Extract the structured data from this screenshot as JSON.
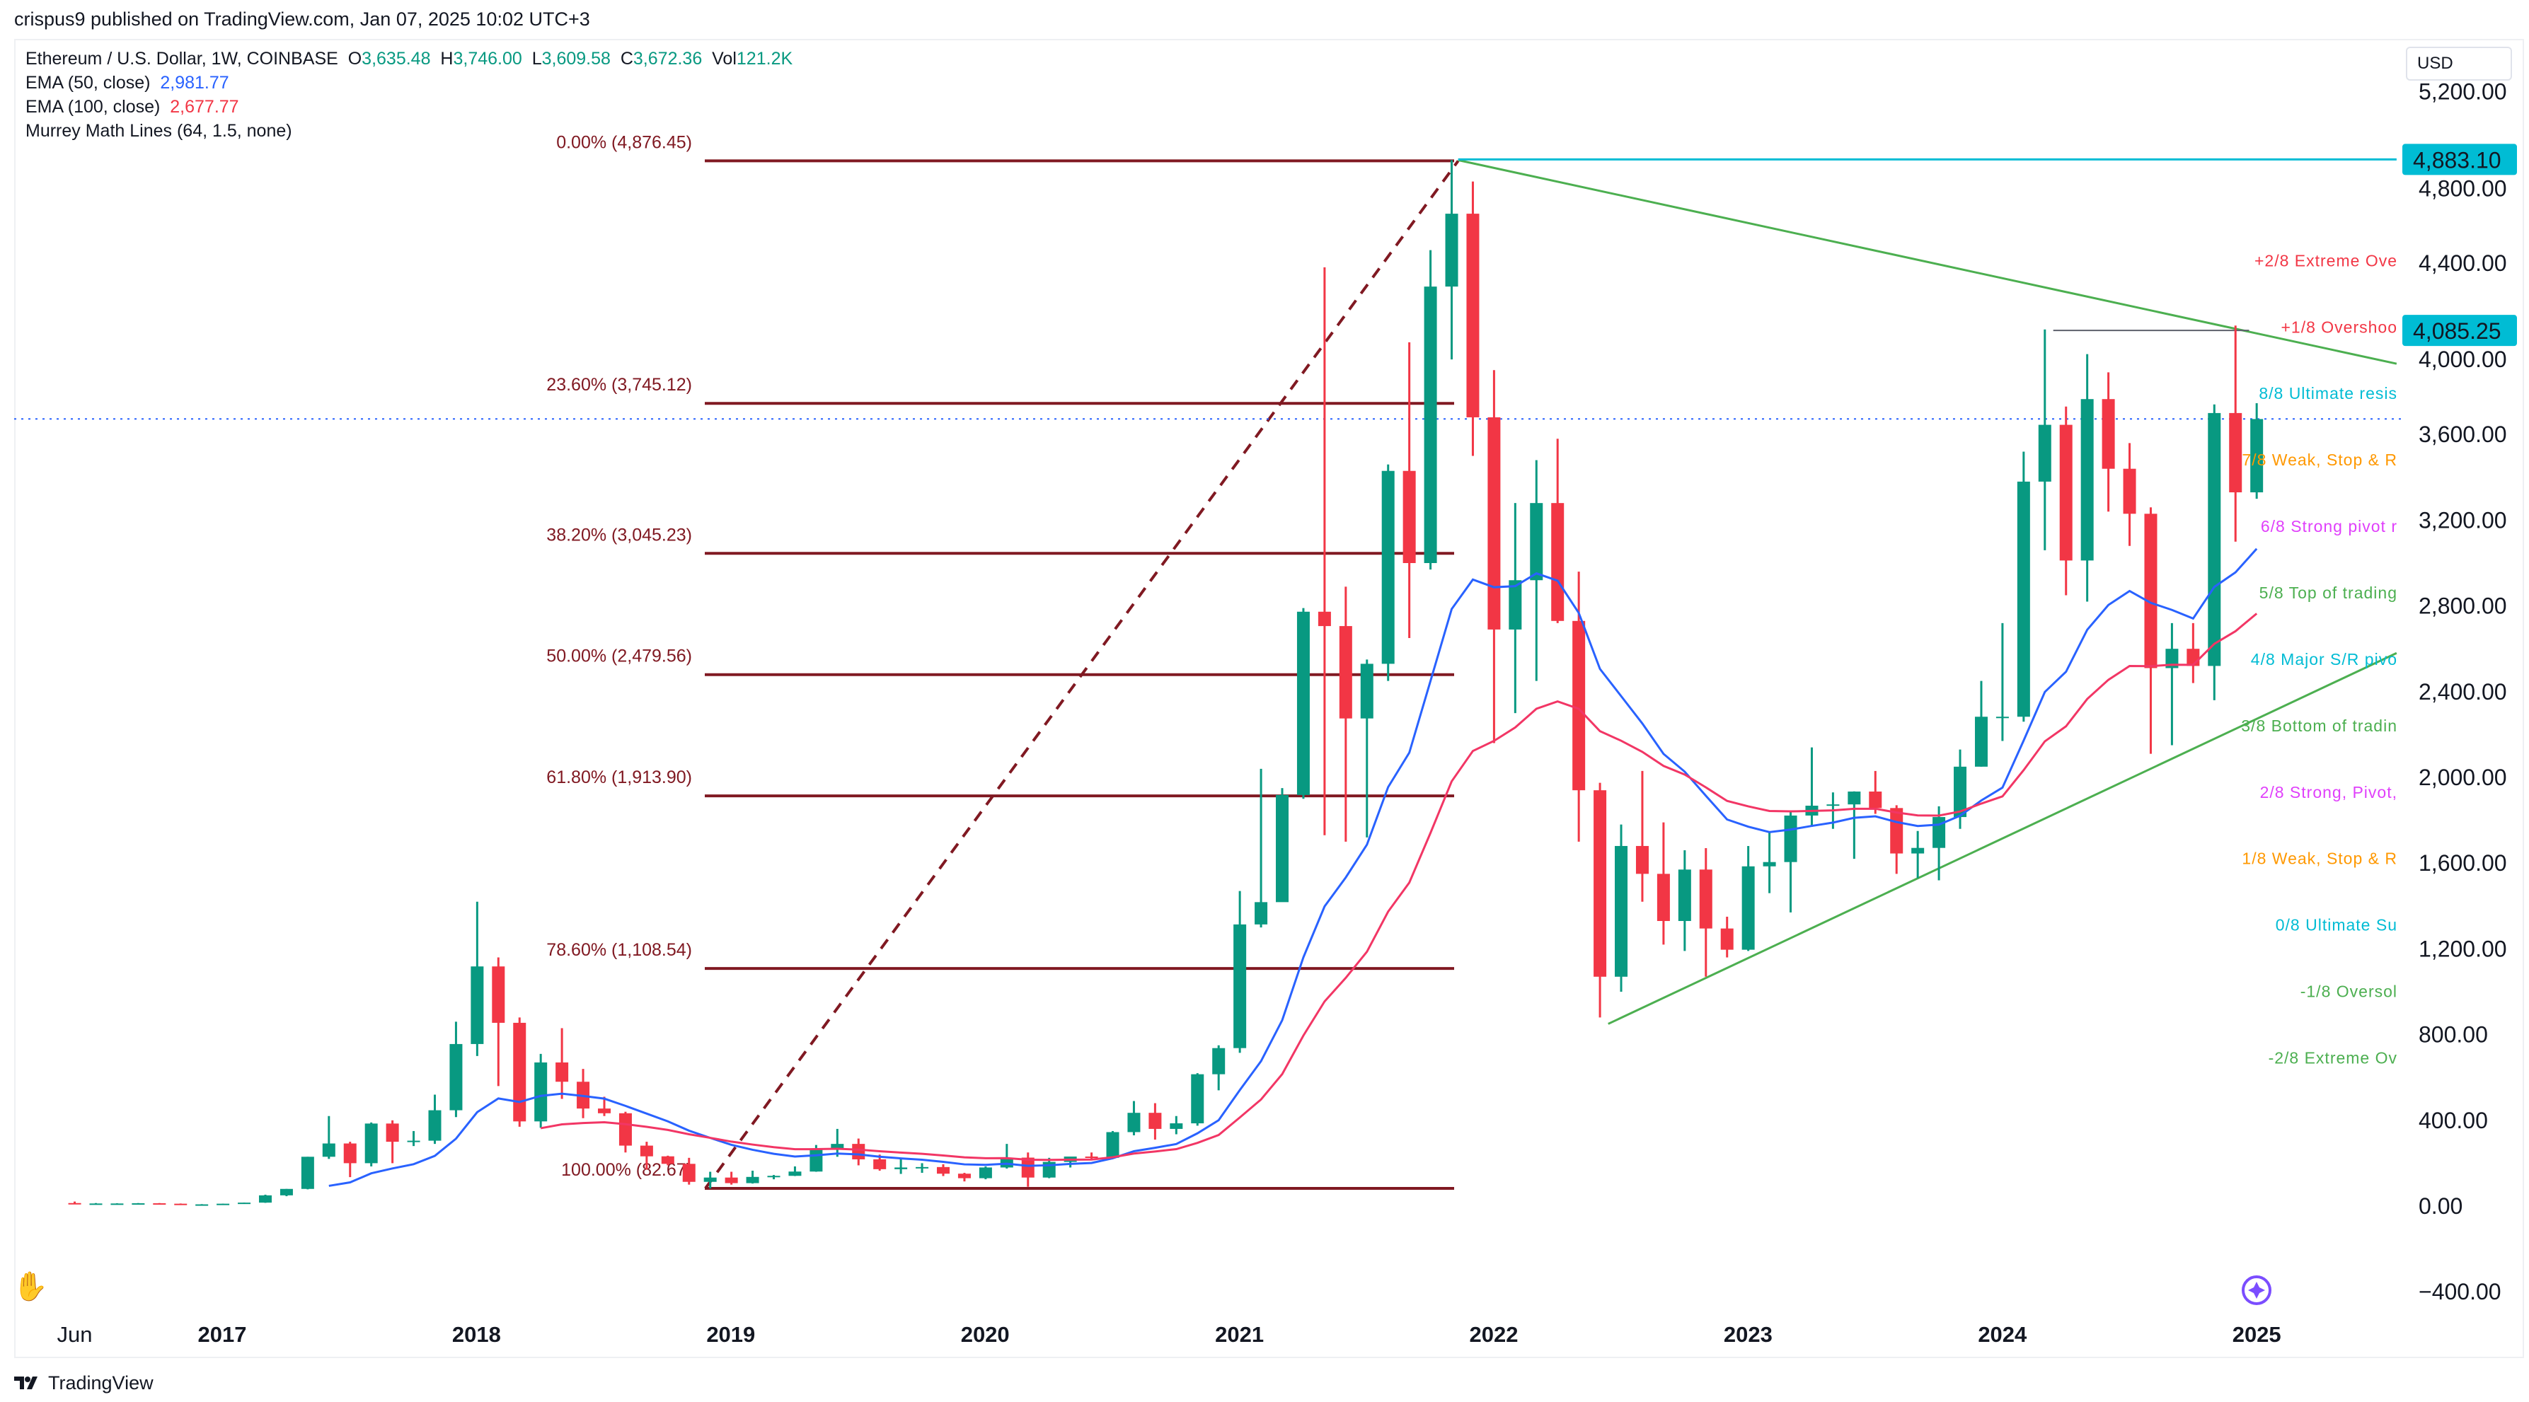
{
  "header": {
    "published": "crispus9 published on TradingView.com, Jan 07, 2025 10:02 UTC+3"
  },
  "legend": {
    "symbol": "Ethereum / U.S. Dollar, 1W, COINBASE",
    "o_label": "O",
    "o": "3,635.48",
    "h_label": "H",
    "h": "3,746.00",
    "l_label": "L",
    "l": "3,609.58",
    "c_label": "C",
    "c": "3,672.36",
    "vol_label": "Vol",
    "vol": "121.2K",
    "ema50_label": "EMA (50, close)",
    "ema50": "2,981.77",
    "ema100_label": "EMA (100, close)",
    "ema100": "2,677.77",
    "murrey_label": "Murrey Math Lines (64, 1.5, none)"
  },
  "currency": "USD",
  "footer": {
    "brand": "TradingView"
  },
  "colors": {
    "up": "#089981",
    "down": "#f23645",
    "ema50": "#2962ff",
    "ema100": "#f23665",
    "fib": "#801922",
    "trend": "#4caf50",
    "price_label": "#00bcd4"
  },
  "icons": {
    "ruler": "ruler-hand-icon",
    "star": "sparkle-icon",
    "logo": "tradingview-logo-icon"
  },
  "chart_data": {
    "type": "candlestick",
    "interval": "1W (shown as monthly approximation)",
    "y_ticks": [
      "5,200.00",
      "4,800.00",
      "4,400.00",
      "4,000.00",
      "3,600.00",
      "3,200.00",
      "2,800.00",
      "2,400.00",
      "2,000.00",
      "1,600.00",
      "1,200.00",
      "800.00",
      "400.00",
      "0.00",
      "−400.00"
    ],
    "y_tick_values": [
      5200,
      4800,
      4400,
      4000,
      3600,
      3200,
      2800,
      2400,
      2000,
      1600,
      1200,
      800,
      400,
      0,
      -400
    ],
    "x_ticks": [
      {
        "label": "Jun",
        "t": 2016.42
      },
      {
        "label": "2017",
        "t": 2017
      },
      {
        "label": "2018",
        "t": 2018
      },
      {
        "label": "2019",
        "t": 2019
      },
      {
        "label": "2020",
        "t": 2020
      },
      {
        "label": "2021",
        "t": 2021
      },
      {
        "label": "2022",
        "t": 2022
      },
      {
        "label": "2023",
        "t": 2023
      },
      {
        "label": "2024",
        "t": 2024
      },
      {
        "label": "2025",
        "t": 2025
      }
    ],
    "ylim": [
      -550,
      5450
    ],
    "xlim": [
      2016.15,
      2025.55
    ],
    "price_labels": [
      {
        "text": "4,883.10",
        "value": 4883.1
      },
      {
        "text": "4,085.25",
        "value": 4085.25
      }
    ],
    "current_price": 3672.36,
    "fib_levels": [
      {
        "label": "0.00% (4,876.45)",
        "value": 4876.45
      },
      {
        "label": "23.60% (3,745.12)",
        "value": 3745.12
      },
      {
        "label": "38.20% (3,045.23)",
        "value": 3045.23
      },
      {
        "label": "50.00% (2,479.56)",
        "value": 2479.56
      },
      {
        "label": "61.80% (1,913.90)",
        "value": 1913.9
      },
      {
        "label": "78.60% (1,108.54)",
        "value": 1108.54
      },
      {
        "label": "100.00% (82.67)",
        "value": 82.67
      }
    ],
    "fib_range": [
      2018.9,
      2021.86
    ],
    "murrey_levels": [
      {
        "label": "+2/8 Extreme Ove",
        "value": 4385,
        "color": "#f23645"
      },
      {
        "label": "+1/8 Overshoo",
        "value": 4075,
        "color": "#f23645"
      },
      {
        "label": "8/8 Ultimate resis",
        "value": 3765,
        "color": "#00bcd4"
      },
      {
        "label": "7/8 Weak, Stop & R",
        "value": 3455,
        "color": "#ff9800"
      },
      {
        "label": "6/8 Strong pivot r",
        "value": 3145,
        "color": "#e040fb"
      },
      {
        "label": "5/8 Top of trading",
        "value": 2835,
        "color": "#4caf50"
      },
      {
        "label": "4/8 Major S/R pivo",
        "value": 2525,
        "color": "#00bcd4"
      },
      {
        "label": "3/8 Bottom of tradin",
        "value": 2215,
        "color": "#4caf50"
      },
      {
        "label": "2/8 Strong, Pivot,",
        "value": 1905,
        "color": "#e040fb"
      },
      {
        "label": "1/8 Weak, Stop & R",
        "value": 1595,
        "color": "#ff9800"
      },
      {
        "label": "0/8 Ultimate Su",
        "value": 1285,
        "color": "#00bcd4"
      },
      {
        "label": "-1/8 Oversol",
        "value": 975,
        "color": "#4caf50"
      },
      {
        "label": "-2/8 Extreme Ov",
        "value": 665,
        "color": "#4caf50"
      }
    ],
    "trendlines": [
      {
        "name": "descending",
        "from": [
          2021.86,
          4880
        ],
        "to": [
          2025.55,
          3930
        ]
      },
      {
        "name": "ascending",
        "from": [
          2022.45,
          850
        ],
        "to": [
          2025.55,
          2580
        ]
      },
      {
        "name": "resistance-4085",
        "from": [
          2024.2,
          4085.25
        ],
        "to": [
          2024.97,
          4085.25
        ]
      },
      {
        "name": "ath-4883",
        "from": [
          2021.86,
          4883.1
        ],
        "to": [
          2025.55,
          4883.1
        ]
      }
    ],
    "ohlc_start": 2016.42,
    "ohlc_step": 0.0833,
    "ohlc": [
      [
        14,
        21,
        11,
        12
      ],
      [
        12,
        14,
        10,
        12
      ],
      [
        12,
        13,
        10,
        12
      ],
      [
        12,
        14,
        11,
        13
      ],
      [
        13,
        14,
        10,
        11
      ],
      [
        11,
        12,
        8,
        8
      ],
      [
        8,
        9,
        6,
        8
      ],
      [
        8,
        11,
        8,
        11
      ],
      [
        11,
        16,
        10,
        16
      ],
      [
        16,
        53,
        15,
        50
      ],
      [
        50,
        80,
        46,
        80
      ],
      [
        80,
        230,
        78,
        230
      ],
      [
        230,
        420,
        220,
        292
      ],
      [
        292,
        300,
        135,
        200
      ],
      [
        200,
        390,
        185,
        385
      ],
      [
        385,
        400,
        200,
        300
      ],
      [
        300,
        350,
        280,
        305
      ],
      [
        305,
        520,
        290,
        447
      ],
      [
        447,
        860,
        415,
        756
      ],
      [
        756,
        1420,
        700,
        1118
      ],
      [
        1118,
        1160,
        560,
        855
      ],
      [
        855,
        880,
        370,
        395
      ],
      [
        395,
        710,
        365,
        670
      ],
      [
        670,
        830,
        500,
        580
      ],
      [
        580,
        640,
        410,
        455
      ],
      [
        455,
        510,
        420,
        433
      ],
      [
        433,
        440,
        250,
        282
      ],
      [
        282,
        300,
        170,
        232
      ],
      [
        232,
        235,
        190,
        197
      ],
      [
        197,
        225,
        100,
        113
      ],
      [
        113,
        160,
        82,
        133
      ],
      [
        133,
        160,
        100,
        107
      ],
      [
        107,
        165,
        105,
        136
      ],
      [
        136,
        145,
        125,
        141
      ],
      [
        141,
        185,
        140,
        161
      ],
      [
        161,
        285,
        160,
        268
      ],
      [
        268,
        360,
        230,
        290
      ],
      [
        290,
        315,
        190,
        218
      ],
      [
        218,
        240,
        165,
        172
      ],
      [
        172,
        225,
        150,
        180
      ],
      [
        180,
        200,
        155,
        182
      ],
      [
        182,
        195,
        140,
        151
      ],
      [
        151,
        155,
        115,
        130
      ],
      [
        130,
        185,
        125,
        180
      ],
      [
        180,
        290,
        175,
        226
      ],
      [
        226,
        250,
        90,
        133
      ],
      [
        133,
        225,
        130,
        206
      ],
      [
        206,
        230,
        180,
        231
      ],
      [
        231,
        250,
        215,
        225
      ],
      [
        225,
        350,
        225,
        345
      ],
      [
        345,
        490,
        330,
        435
      ],
      [
        435,
        480,
        310,
        360
      ],
      [
        360,
        420,
        335,
        386
      ],
      [
        386,
        620,
        375,
        615
      ],
      [
        615,
        750,
        540,
        737
      ],
      [
        737,
        1470,
        715,
        1314
      ],
      [
        1314,
        2040,
        1300,
        1418
      ],
      [
        1418,
        1950,
        1450,
        1918
      ],
      [
        1918,
        2790,
        1900,
        2773
      ],
      [
        2773,
        4380,
        1730,
        2706
      ],
      [
        2706,
        2890,
        1700,
        2275
      ],
      [
        2275,
        2550,
        1720,
        2530
      ],
      [
        2530,
        3460,
        2450,
        3430
      ],
      [
        3430,
        4030,
        2650,
        3000
      ],
      [
        3000,
        4460,
        2970,
        4290
      ],
      [
        4290,
        4880,
        3950,
        4630
      ],
      [
        4630,
        4780,
        3500,
        3680
      ],
      [
        3680,
        3900,
        2160,
        2690
      ],
      [
        2690,
        3280,
        2300,
        2920
      ],
      [
        2920,
        3480,
        2450,
        3280
      ],
      [
        3280,
        3580,
        2720,
        2730
      ],
      [
        2730,
        2960,
        1700,
        1940
      ],
      [
        1940,
        1975,
        880,
        1070
      ],
      [
        1070,
        1780,
        1000,
        1680
      ],
      [
        1680,
        2030,
        1420,
        1550
      ],
      [
        1550,
        1790,
        1220,
        1330
      ],
      [
        1330,
        1660,
        1190,
        1570
      ],
      [
        1570,
        1670,
        1070,
        1295
      ],
      [
        1295,
        1350,
        1160,
        1196
      ],
      [
        1196,
        1680,
        1190,
        1585
      ],
      [
        1585,
        1745,
        1460,
        1605
      ],
      [
        1605,
        1840,
        1370,
        1822
      ],
      [
        1822,
        2140,
        1770,
        1868
      ],
      [
        1868,
        1930,
        1760,
        1874
      ],
      [
        1874,
        1935,
        1620,
        1934
      ],
      [
        1934,
        2030,
        1830,
        1857
      ],
      [
        1857,
        1870,
        1550,
        1645
      ],
      [
        1645,
        1750,
        1530,
        1671
      ],
      [
        1671,
        1865,
        1520,
        1815
      ],
      [
        1815,
        2130,
        1760,
        2050
      ],
      [
        2050,
        2450,
        2050,
        2283
      ],
      [
        2283,
        2720,
        2170,
        2283
      ],
      [
        2283,
        3520,
        2260,
        3380
      ],
      [
        3380,
        4090,
        3060,
        3645
      ],
      [
        3645,
        3730,
        2850,
        3012
      ],
      [
        3012,
        3975,
        2820,
        3765
      ],
      [
        3765,
        3890,
        3240,
        3440
      ],
      [
        3440,
        3560,
        3080,
        3230
      ],
      [
        3230,
        3260,
        2110,
        2510
      ],
      [
        2510,
        2720,
        2150,
        2600
      ],
      [
        2600,
        2720,
        2440,
        2520
      ],
      [
        2520,
        3740,
        2360,
        3700
      ],
      [
        3700,
        4108,
        3100,
        3330
      ],
      [
        3330,
        3746,
        3300,
        3672
      ]
    ]
  }
}
